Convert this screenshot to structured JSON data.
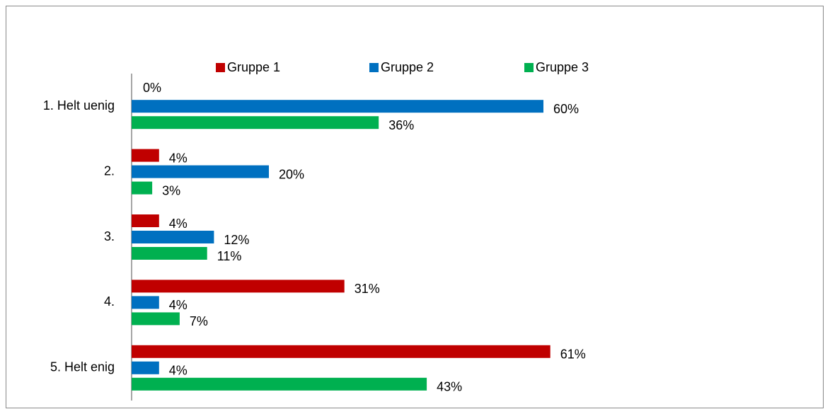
{
  "chart_data": {
    "type": "hbar",
    "categories": [
      "1. Helt uenig",
      "2.",
      "3.",
      "4.",
      "5. Helt enig"
    ],
    "series": [
      {
        "name": "Gruppe 1",
        "color": "#c00000",
        "values": [
          0,
          4,
          4,
          31,
          61
        ],
        "value_labels": [
          "0%",
          "4%",
          "4%",
          "31%",
          "61%"
        ]
      },
      {
        "name": "Gruppe 2",
        "color": "#0070c0",
        "values": [
          60,
          20,
          12,
          4,
          4
        ],
        "value_labels": [
          "60%",
          "20%",
          "12%",
          "4%",
          "4%"
        ]
      },
      {
        "name": "Gruppe 3",
        "color": "#00b050",
        "values": [
          36,
          3,
          11,
          7,
          43
        ],
        "value_labels": [
          "36%",
          "3%",
          "11%",
          "7%",
          "43%"
        ]
      }
    ],
    "xlim": [
      0,
      100
    ],
    "legend": "top"
  }
}
